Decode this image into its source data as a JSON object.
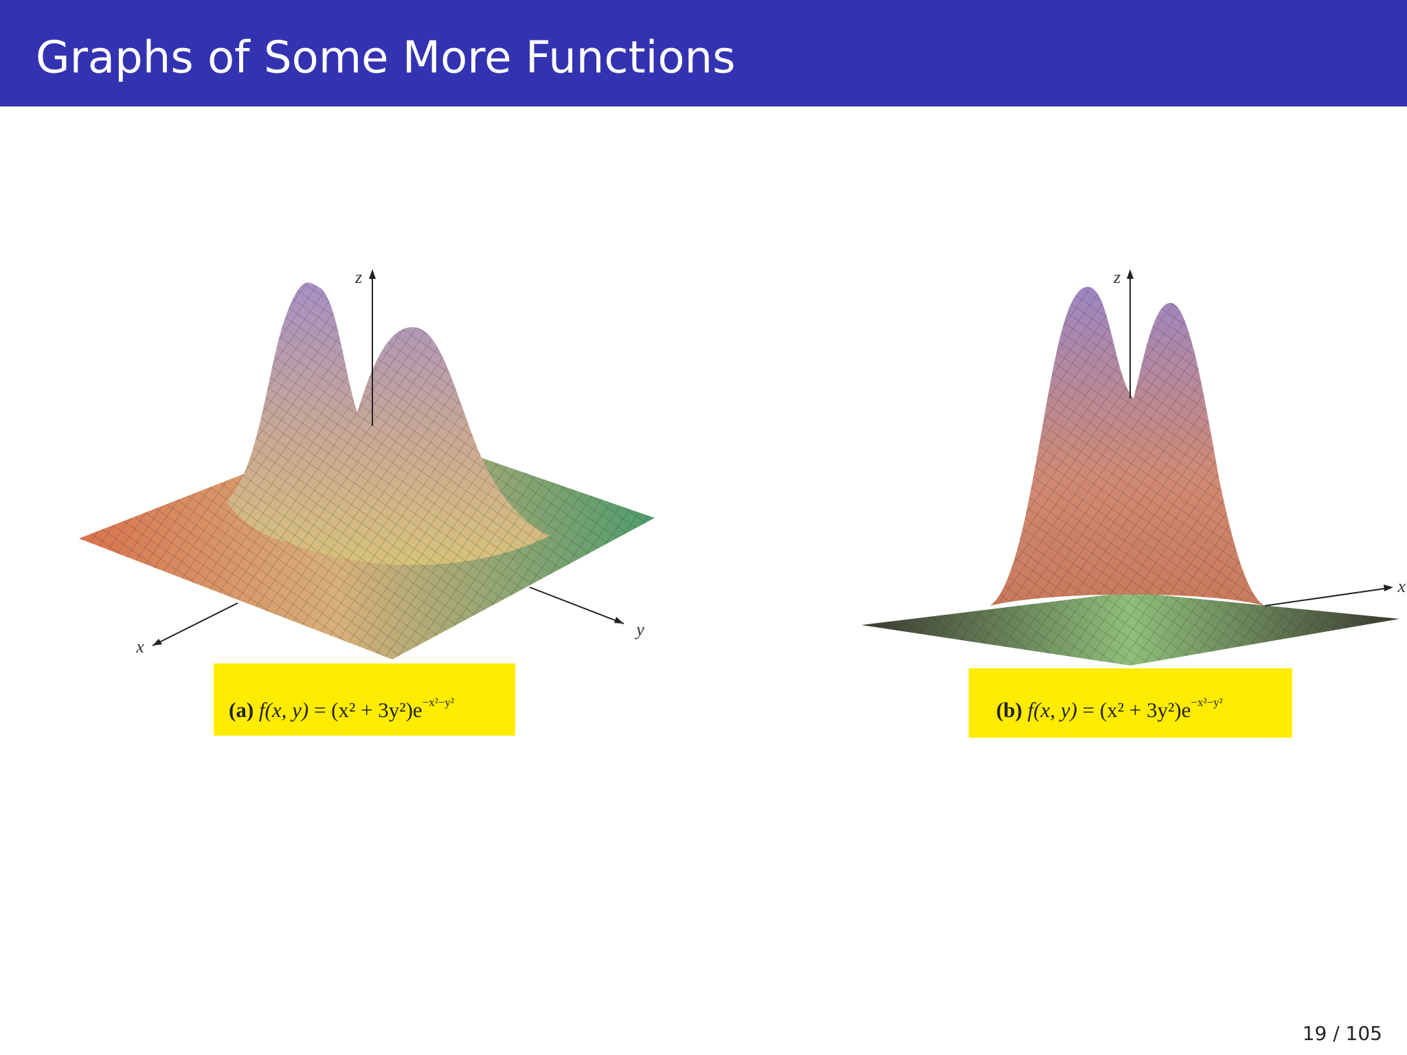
{
  "header": {
    "title": "Graphs of Some More Functions"
  },
  "figures": [
    {
      "axes": {
        "z": "z",
        "x": "x",
        "y": "y"
      },
      "caption": {
        "label": "(a)",
        "lhs": "f(x, y)",
        "rhs": "= (x² + 3y²)e",
        "exponent": "−x²−y²"
      }
    },
    {
      "axes": {
        "z": "z",
        "x": "x"
      },
      "caption": {
        "label": "(b)",
        "lhs": "f(x, y)",
        "rhs": "= (x² + 3y²)e",
        "exponent": "−x²−y²"
      }
    }
  ],
  "footer": {
    "page": "19 / 105"
  }
}
